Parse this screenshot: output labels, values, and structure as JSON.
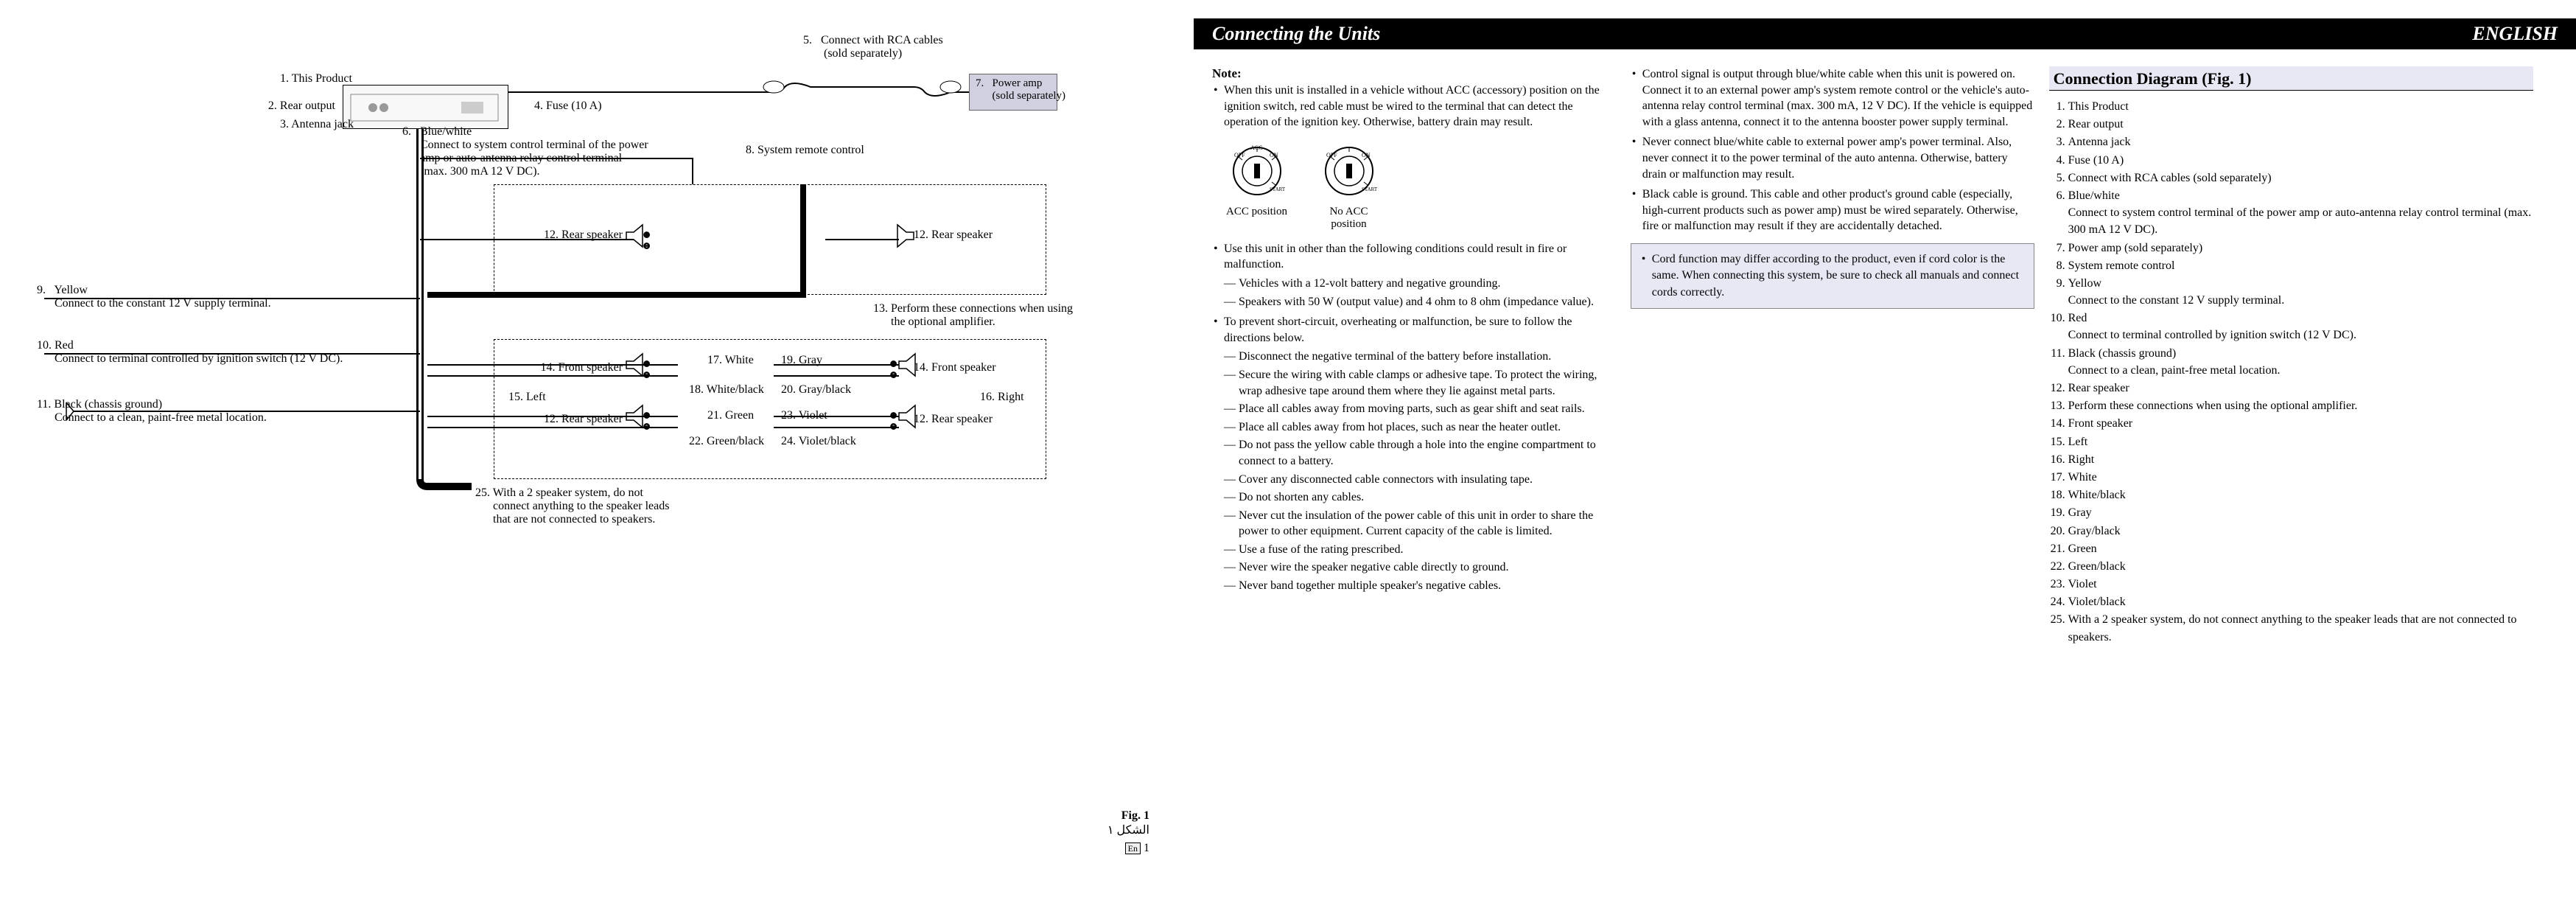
{
  "header": {
    "title": "Connecting the Units",
    "lang": "ENGLISH"
  },
  "diagram": {
    "labels": {
      "l1": "1. This Product",
      "l2": "2. Rear output",
      "l3": "3. Antenna jack",
      "l4": "4. Fuse (10 A)",
      "l5": "5.   Connect with RCA cables\n       (sold separately)",
      "l6": "6.   Blue/white\n      Connect to system control terminal of the power\n      amp or auto-antenna relay control terminal\n      (max. 300 mA 12 V DC).",
      "l7": "7.   Power amp\n      (sold separately)",
      "l8": "8.   System remote control",
      "l9": "9.   Yellow\n      Connect to the constant 12 V supply terminal.",
      "l10": "10. Red\n      Connect to terminal controlled by ignition switch (12 V DC).",
      "l11": "11. Black (chassis ground)\n      Connect to a clean, paint-free metal location.",
      "l12a": "12. Rear speaker",
      "l12b": "12. Rear speaker",
      "l12c": "12. Rear speaker",
      "l12d": "12. Rear speaker",
      "l13": "13. Perform these connections when using\n      the optional amplifier.",
      "l14a": "14. Front speaker",
      "l14b": "14. Front speaker",
      "l15": "15.  Left",
      "l16": "16.  Right",
      "l17": "17. White",
      "l18": "18. White/black",
      "l19": "19. Gray",
      "l20": "20. Gray/black",
      "l21": "21. Green",
      "l22": "22. Green/black",
      "l23": "23. Violet",
      "l24": "24. Violet/black",
      "l25": "25. With a 2 speaker system, do not\n      connect anything to the speaker leads\n      that are not connected to speakers."
    },
    "fig": "Fig. 1",
    "fig_ar": "الشكل ١",
    "fig_page": "1"
  },
  "notes": {
    "head": "Note:",
    "col1": [
      {
        "text": "When this unit is installed in a vehicle without ACC (accessory) position on the ignition switch, red cable must be wired to the terminal that can detect the operation of the ignition key. Otherwise, battery drain may result."
      },
      {
        "text": "Use this unit in other than the following conditions could result in fire or malfunction.",
        "sub": [
          "Vehicles with a 12-volt battery and negative grounding.",
          "Speakers with 50 W (output value) and 4 ohm to 8 ohm (impedance value)."
        ]
      },
      {
        "text": "To prevent short-circuit, overheating or malfunction, be sure to follow the directions below.",
        "sub": [
          "Disconnect the negative terminal of the battery before installation.",
          "Secure the wiring with cable clamps or adhesive tape. To protect the wiring, wrap adhesive tape around them where they lie against metal parts.",
          "Place all cables away from moving parts, such as gear shift and seat rails.",
          "Place all cables away from hot places, such as near the heater outlet.",
          "Do not pass the yellow cable through a hole into the engine compartment to connect to a battery.",
          "Cover any disconnected cable connectors with insulating tape.",
          "Do not shorten any cables.",
          "Never cut the insulation of the power cable of this unit in order to share the power to other equipment. Current capacity of the cable is limited.",
          "Use a fuse of the rating prescribed.",
          "Never wire the speaker negative cable directly to ground.",
          "Never band together multiple speaker's negative cables."
        ]
      }
    ],
    "col2": [
      {
        "text": "Control signal is output through blue/white cable when this unit is powered on. Connect it to an external power amp's system remote control or the vehicle's auto-antenna relay control terminal (max. 300 mA, 12 V DC). If the vehicle is equipped with a glass antenna, connect it to the antenna booster power supply terminal."
      },
      {
        "text": "Never connect blue/white cable to external power amp's power terminal. Also, never connect it to the power terminal of the auto antenna. Otherwise, battery drain or malfunction may result."
      },
      {
        "text": "Black cable is ground. This cable and other product's ground cable (especially, high-current products such as power amp) must be wired separately. Otherwise, fire or malfunction may result if they are accidentally detached."
      }
    ],
    "infobox": "Cord function may differ according to the product, even if cord color is the same. When connecting this system, be sure to check all manuals and connect cords correctly.",
    "dial1": "ACC position",
    "dial2": "No ACC position",
    "dial1_marks": "OFF  ACC    ON    START",
    "dial2_marks": "OFF         ON    START"
  },
  "legend": {
    "title": "Connection Diagram (Fig. 1)",
    "items": [
      {
        "n": "1.",
        "t": "This Product"
      },
      {
        "n": "2.",
        "t": "Rear output"
      },
      {
        "n": "3.",
        "t": "Antenna jack"
      },
      {
        "n": "4.",
        "t": "Fuse (10 A)"
      },
      {
        "n": "5.",
        "t": "Connect with RCA cables (sold separately)"
      },
      {
        "n": "6.",
        "t": "Blue/white",
        "sub": "Connect to system control terminal of the power amp or auto-antenna relay control terminal (max. 300 mA 12 V DC)."
      },
      {
        "n": "7.",
        "t": "Power amp (sold separately)"
      },
      {
        "n": "8.",
        "t": "System remote control"
      },
      {
        "n": "9.",
        "t": "Yellow",
        "sub": "Connect to the constant 12 V supply terminal."
      },
      {
        "n": "10.",
        "t": "Red",
        "sub": "Connect to terminal controlled by ignition switch (12 V DC)."
      },
      {
        "n": "11.",
        "t": "Black (chassis ground)",
        "sub": "Connect to a clean, paint-free metal location."
      },
      {
        "n": "12.",
        "t": "Rear speaker"
      },
      {
        "n": "13.",
        "t": "Perform these connections when using the optional amplifier."
      },
      {
        "n": "14.",
        "t": "Front speaker"
      },
      {
        "n": "15.",
        "t": "Left"
      },
      {
        "n": "16.",
        "t": "Right"
      },
      {
        "n": "17.",
        "t": "White"
      },
      {
        "n": "18.",
        "t": "White/black"
      },
      {
        "n": "19.",
        "t": "Gray"
      },
      {
        "n": "20.",
        "t": "Gray/black"
      },
      {
        "n": "21.",
        "t": "Green"
      },
      {
        "n": "22.",
        "t": "Green/black"
      },
      {
        "n": "23.",
        "t": "Violet"
      },
      {
        "n": "24.",
        "t": "Violet/black"
      },
      {
        "n": "25.",
        "t": "With a 2 speaker system, do not connect anything to the speaker leads that are not connected to speakers."
      }
    ]
  },
  "colors": {
    "boxfill": "#e8e8f5",
    "headerbg": "#000000",
    "headerfg": "#ffffff"
  }
}
